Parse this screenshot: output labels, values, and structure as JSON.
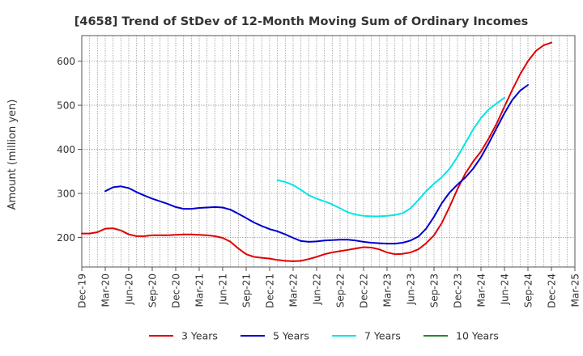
{
  "chart_data": {
    "type": "line",
    "title": "[4658]  Trend of StDev of 12-Month Moving Sum of Ordinary Incomes",
    "xlabel": "",
    "ylabel": "Amount (million yen)",
    "ylim": [
      133,
      658
    ],
    "yticks": [
      200,
      300,
      400,
      500,
      600
    ],
    "xlim": [
      0,
      63
    ],
    "xtick_labels": [
      "Dec-19",
      "Mar-20",
      "Jun-20",
      "Sep-20",
      "Dec-20",
      "Mar-21",
      "Jun-21",
      "Sep-21",
      "Dec-21",
      "Mar-22",
      "Jun-22",
      "Sep-22",
      "Dec-22",
      "Mar-23",
      "Jun-23",
      "Sep-23",
      "Dec-23",
      "Mar-24",
      "Jun-24",
      "Sep-24",
      "Dec-24",
      "Mar-25"
    ],
    "grid": true,
    "legend_position": "bottom",
    "series": [
      {
        "name": "3 Years",
        "color": "#e00000",
        "x": [
          0,
          1,
          2,
          3,
          4,
          5,
          6,
          7,
          8,
          9,
          10,
          11,
          12,
          13,
          14,
          15,
          16,
          17,
          18,
          19,
          20,
          21,
          22,
          23,
          24,
          25,
          26,
          27,
          28,
          29,
          30,
          31,
          32,
          33,
          34,
          35,
          36,
          37,
          38,
          39,
          40,
          41,
          42,
          43,
          44,
          45,
          46,
          47,
          48,
          49,
          50,
          51,
          52,
          53,
          54,
          55,
          56,
          57,
          58,
          59,
          60
        ],
        "values": [
          209,
          209,
          212,
          220,
          221,
          216,
          207,
          203,
          203,
          205,
          205,
          205,
          206,
          207,
          207,
          206,
          205,
          203,
          199,
          190,
          175,
          162,
          156,
          154,
          152,
          149,
          147,
          146,
          147,
          151,
          156,
          162,
          166,
          169,
          172,
          175,
          178,
          177,
          173,
          166,
          162,
          163,
          166,
          173,
          187,
          205,
          233,
          270,
          310,
          345,
          372,
          395,
          425,
          458,
          497,
          535,
          570,
          600,
          623,
          636,
          642
        ]
      },
      {
        "name": "5 Years",
        "color": "#0000cc",
        "x": [
          0,
          1,
          2,
          3,
          4,
          5,
          6,
          7,
          8,
          9,
          10,
          11,
          12,
          13,
          14,
          15,
          16,
          17,
          18,
          19,
          20,
          21,
          22,
          23,
          24,
          25,
          26,
          27,
          28,
          29,
          30,
          31,
          32,
          33,
          34,
          35,
          36,
          37,
          38,
          39,
          40,
          41,
          42,
          43,
          44,
          45,
          46,
          47,
          48,
          49,
          50,
          51,
          52,
          53,
          54,
          55,
          56,
          57,
          58,
          59,
          60
        ],
        "values": [
          null,
          null,
          null,
          305,
          314,
          316,
          312,
          303,
          295,
          288,
          282,
          276,
          269,
          265,
          265,
          267,
          268,
          269,
          268,
          263,
          254,
          244,
          234,
          226,
          219,
          214,
          207,
          199,
          192,
          190,
          191,
          193,
          194,
          195,
          195,
          193,
          190,
          188,
          187,
          186,
          186,
          188,
          193,
          202,
          220,
          247,
          278,
          302,
          320,
          336,
          356,
          382,
          414,
          448,
          482,
          512,
          533,
          546,
          null,
          null,
          null
        ]
      },
      {
        "name": "7 Years",
        "color": "#00e5e5",
        "x": [
          0,
          1,
          2,
          3,
          4,
          5,
          6,
          7,
          8,
          9,
          10,
          11,
          12,
          13,
          14,
          15,
          16,
          17,
          18,
          19,
          20,
          21,
          22,
          23,
          24,
          25,
          26,
          27,
          28,
          29,
          30,
          31,
          32,
          33,
          34,
          35,
          36,
          37,
          38,
          39,
          40,
          41,
          42,
          43,
          44,
          45,
          46,
          47,
          48,
          49,
          50,
          51,
          52,
          53,
          54,
          55,
          56,
          57,
          58,
          59,
          60
        ],
        "values": [
          null,
          null,
          null,
          null,
          null,
          null,
          null,
          null,
          null,
          null,
          null,
          null,
          null,
          null,
          null,
          null,
          null,
          null,
          null,
          null,
          null,
          null,
          null,
          null,
          null,
          330,
          326,
          319,
          308,
          296,
          288,
          282,
          275,
          266,
          257,
          252,
          249,
          248,
          248,
          249,
          251,
          255,
          266,
          285,
          305,
          322,
          337,
          356,
          383,
          414,
          445,
          471,
          491,
          504,
          517,
          null,
          null,
          null,
          null,
          null,
          null
        ]
      },
      {
        "name": "10 Years",
        "color": "#228b22",
        "x": [],
        "values": []
      }
    ]
  }
}
